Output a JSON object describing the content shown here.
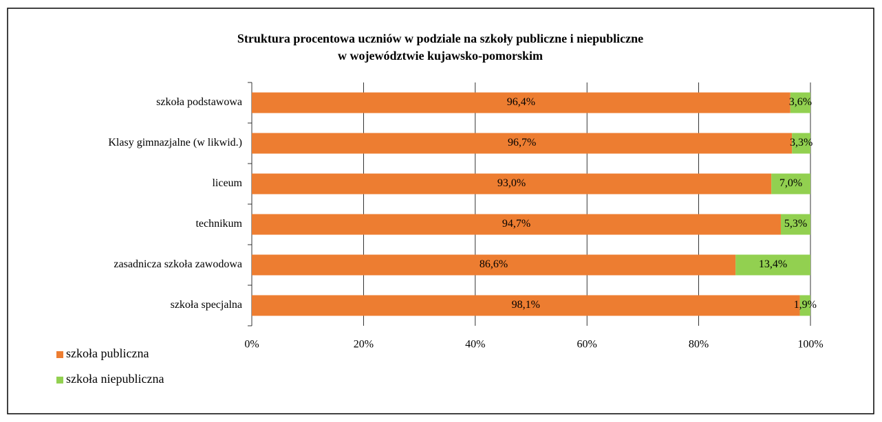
{
  "chart_data": {
    "type": "stacked_bar_horizontal",
    "title": [
      "Struktura procentowa uczniów w podziale na szkoły publiczne i niepubliczne",
      "w województwie kujawsko-pomorskim"
    ],
    "categories": [
      "szkoła podstawowa",
      "Klasy gimnazjalne (w likwid.)",
      "liceum",
      "technikum",
      "zasadnicza szkoła zawodowa",
      "szkoła specjalna"
    ],
    "series": [
      {
        "name": "szkoła publiczna",
        "color": "#ed7d31",
        "values": [
          96.4,
          96.7,
          93.0,
          94.7,
          86.6,
          98.1
        ],
        "value_labels": [
          "96,4%",
          "96,7%",
          "93,0%",
          "94,7%",
          "86,6%",
          "98,1%"
        ]
      },
      {
        "name": "szkoła niepubliczna",
        "color": "#92d050",
        "values": [
          3.6,
          3.3,
          7.0,
          5.3,
          13.4,
          1.9
        ],
        "value_labels": [
          "3,6%",
          "3,3%",
          "7,0%",
          "5,3%",
          "13,4%",
          "1,9%"
        ]
      }
    ],
    "xlim": [
      0,
      100
    ],
    "xticks": [
      {
        "value": 0,
        "label": "0%"
      },
      {
        "value": 20,
        "label": "20%"
      },
      {
        "value": 40,
        "label": "40%"
      },
      {
        "value": 60,
        "label": "60%"
      },
      {
        "value": 80,
        "label": "80%"
      },
      {
        "value": 100,
        "label": "100%"
      }
    ],
    "grid": true,
    "legend": "bottom-left"
  }
}
